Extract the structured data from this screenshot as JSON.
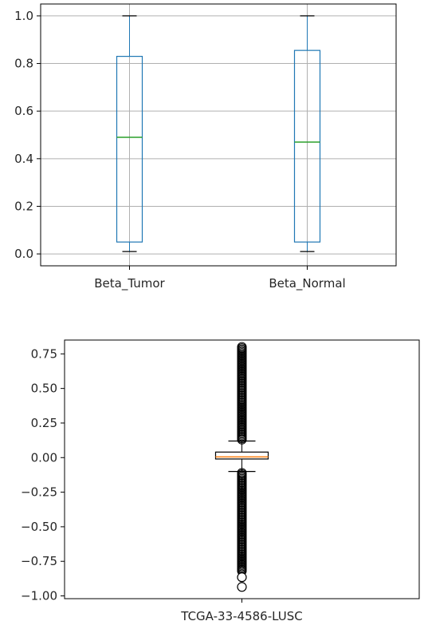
{
  "chart_data": [
    {
      "type": "box",
      "categories": [
        "Beta_Tumor",
        "Beta_Normal"
      ],
      "series": [
        {
          "whislo": 0.01,
          "q1": 0.05,
          "med": 0.49,
          "q3": 0.83,
          "whishi": 1.0
        },
        {
          "whislo": 0.01,
          "q1": 0.05,
          "med": 0.47,
          "q3": 0.855,
          "whishi": 1.0
        }
      ],
      "yticks": [
        "0.0",
        "0.2",
        "0.4",
        "0.6",
        "0.8",
        "1.0"
      ],
      "ylim": [
        -0.05,
        1.05
      ],
      "grid": true,
      "colors": {
        "box": "#1f77b4",
        "median": "#2ca02c",
        "whisker": "#000000",
        "grid": "#b0b0b0"
      }
    },
    {
      "type": "box",
      "categories": [
        "TCGA-33-4586-LUSC"
      ],
      "series": [
        {
          "whislo": -0.1,
          "q1": -0.01,
          "med": 0.005,
          "q3": 0.04,
          "whishi": 0.12,
          "fliers_range_high": [
            0.13,
            0.8
          ],
          "fliers_range_low": [
            -0.82,
            -0.11
          ],
          "fliers_extra": [
            -0.865,
            -0.935
          ]
        }
      ],
      "yticks": [
        "0.75",
        "0.50",
        "0.25",
        "0.00",
        "−0.25",
        "−0.50",
        "−0.75",
        "−1.00"
      ],
      "ylim": [
        -1.02,
        0.85
      ],
      "grid": false,
      "colors": {
        "box": "#000000",
        "median": "#ff7f0e",
        "whisker": "#000000",
        "flier": "#000000"
      }
    }
  ]
}
